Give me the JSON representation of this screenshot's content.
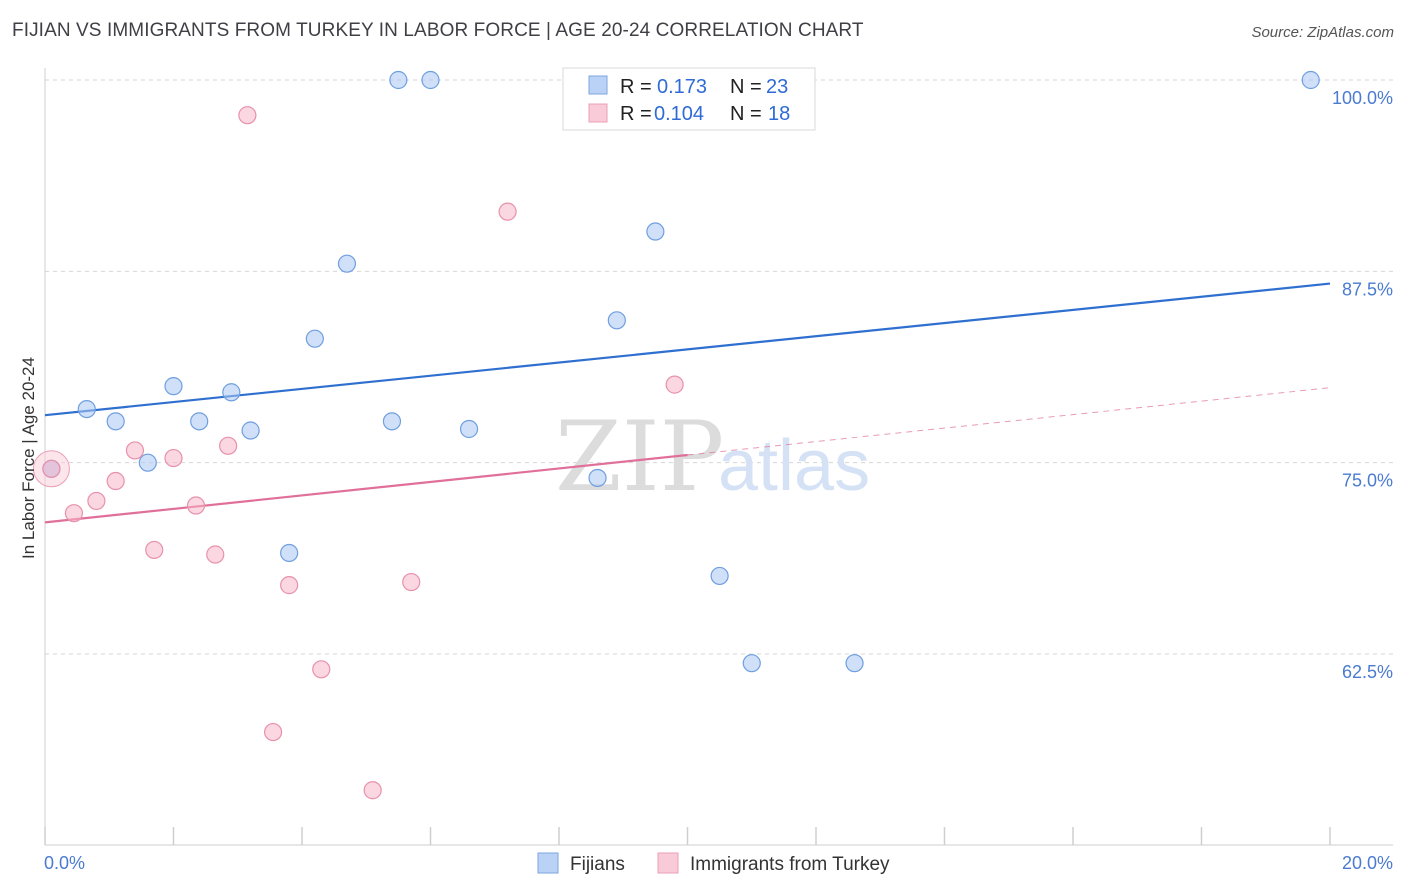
{
  "title": "FIJIAN VS IMMIGRANTS FROM TURKEY IN LABOR FORCE | AGE 20-24 CORRELATION CHART",
  "source": "Source: ZipAtlas.com",
  "watermark": {
    "zip": "ZIP",
    "atlas": "atlas"
  },
  "legend_top": [
    {
      "r_label": "R =",
      "r_value": "0.173",
      "n_label": "N =",
      "n_value": "23",
      "color": "#a9c6f2"
    },
    {
      "r_label": "R =",
      "r_value": "0.104",
      "n_label": "N =",
      "n_value": "18",
      "color": "#f5b6c8"
    }
  ],
  "legend_bottom": [
    "Fijians",
    "Immigrants from Turkey"
  ],
  "chart_data": {
    "type": "scatter",
    "xlabel": "",
    "ylabel": "In Labor Force | Age 20-24",
    "xlim": [
      0,
      20
    ],
    "ylim": [
      52.5,
      100
    ],
    "x_tick_labels": [
      "0.0%",
      "20.0%"
    ],
    "y_ticks": [
      62.5,
      75.0,
      87.5,
      100.0
    ],
    "y_tick_labels": [
      "62.5%",
      "75.0%",
      "87.5%",
      "100.0%"
    ],
    "grid": true,
    "series": [
      {
        "name": "Fijians",
        "color": "#a9c6f2",
        "stroke": "#6f9fe0",
        "line_color": "#2f6fd0",
        "trend": {
          "x0": 0,
          "y0": 78.1,
          "x1": 20,
          "y1": 86.7
        },
        "points": [
          [
            0.1,
            74.6
          ],
          [
            0.65,
            78.5
          ],
          [
            1.1,
            77.7
          ],
          [
            1.6,
            75.0
          ],
          [
            2.0,
            80.0
          ],
          [
            2.4,
            77.7
          ],
          [
            2.9,
            79.6
          ],
          [
            3.2,
            77.1
          ],
          [
            3.8,
            69.1
          ],
          [
            4.2,
            83.1
          ],
          [
            4.7,
            88.0
          ],
          [
            5.4,
            77.7
          ],
          [
            5.5,
            100.0
          ],
          [
            6.0,
            100.0
          ],
          [
            6.6,
            77.2
          ],
          [
            8.6,
            74.0
          ],
          [
            8.9,
            84.3
          ],
          [
            9.5,
            90.1
          ],
          [
            10.5,
            67.6
          ],
          [
            11.0,
            61.9
          ],
          [
            12.6,
            61.9
          ],
          [
            19.7,
            100.0
          ],
          [
            9.8,
            100.0
          ]
        ]
      },
      {
        "name": "Immigrants from Turkey",
        "color": "#f5b6c8",
        "stroke": "#e891ab",
        "line_color": "#e0709a",
        "trend": {
          "x0": 0,
          "y0": 71.1,
          "x1": 10,
          "y1": 75.5
        },
        "trend_dashed": {
          "x0": 10,
          "y0": 75.5,
          "x1": 20,
          "y1": 79.9
        },
        "points": [
          [
            0.1,
            74.6
          ],
          [
            0.45,
            71.7
          ],
          [
            0.8,
            72.5
          ],
          [
            1.1,
            73.8
          ],
          [
            1.4,
            75.8
          ],
          [
            1.7,
            69.3
          ],
          [
            2.0,
            75.3
          ],
          [
            2.35,
            72.2
          ],
          [
            2.65,
            69.0
          ],
          [
            2.85,
            76.1
          ],
          [
            3.15,
            97.7
          ],
          [
            3.55,
            57.4
          ],
          [
            3.8,
            67.0
          ],
          [
            4.3,
            61.5
          ],
          [
            5.1,
            53.6
          ],
          [
            5.7,
            67.2
          ],
          [
            7.2,
            91.4
          ],
          [
            9.8,
            80.1
          ]
        ]
      }
    ]
  }
}
